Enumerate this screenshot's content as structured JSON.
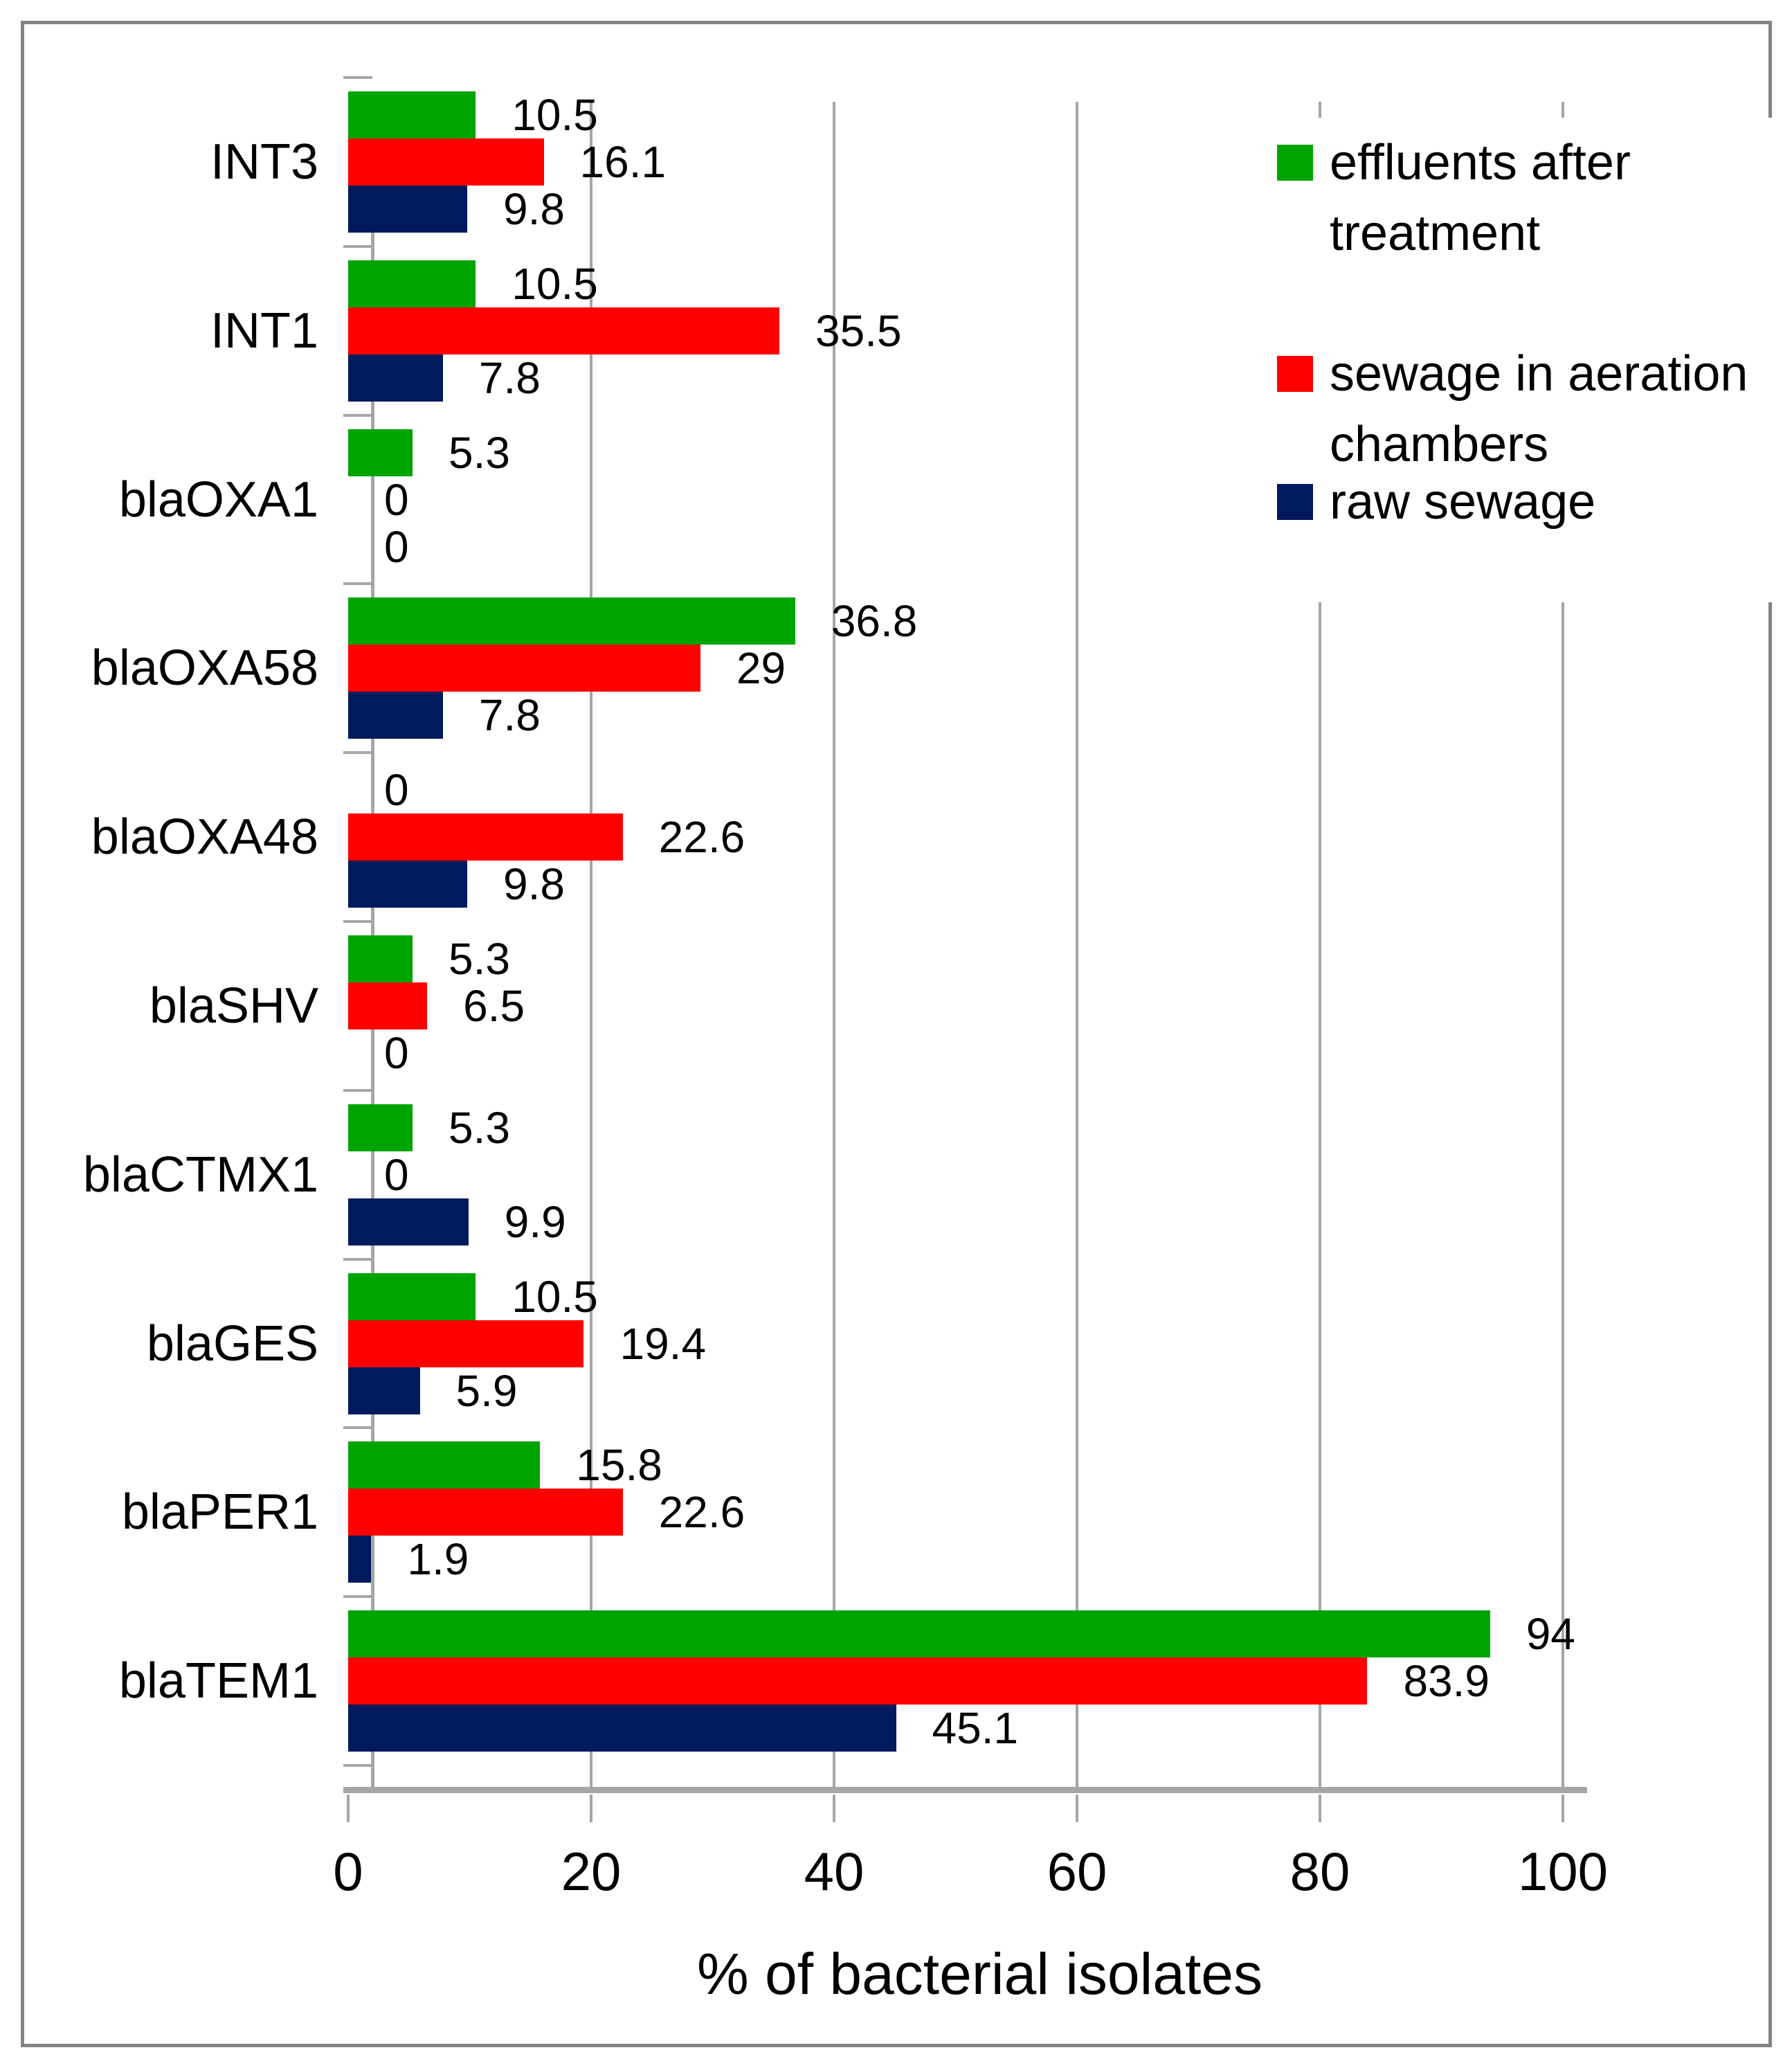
{
  "figure": {
    "border_color": "#848484",
    "background": "#ffffff",
    "gridline_color": "#a6a6a6",
    "axis_line_color": "#a6a6a6"
  },
  "chart_data": {
    "type": "bar",
    "orientation": "horizontal",
    "title": "",
    "xlabel": "% of bacterial isolates",
    "ylabel": "",
    "xlim": [
      0,
      100
    ],
    "x_ticks": [
      0,
      20,
      40,
      60,
      80,
      100
    ],
    "grid": true,
    "legend_position": "top-right",
    "categories": [
      "INT3",
      "INT1",
      "blaOXA1",
      "blaOXA58",
      "blaOXA48",
      "blaSHV",
      "blaCTMX1",
      "blaGES",
      "blaPER1",
      "blaTEM1"
    ],
    "series": [
      {
        "name": "effluents after treatment",
        "color": "#00a400",
        "values": [
          10.5,
          10.5,
          5.3,
          36.8,
          0,
          5.3,
          5.3,
          10.5,
          15.8,
          94
        ]
      },
      {
        "name": "sewage in aeration chambers",
        "color": "#ff0000",
        "values": [
          16.1,
          35.5,
          0,
          29,
          22.6,
          6.5,
          0,
          19.4,
          22.6,
          83.9
        ]
      },
      {
        "name": "raw sewage",
        "color": "#001a5c",
        "values": [
          9.8,
          7.8,
          0,
          7.8,
          9.8,
          0,
          9.9,
          5.9,
          1.9,
          45.1
        ]
      }
    ]
  },
  "legend": {
    "items": [
      {
        "label_lines": [
          "effluents after",
          "treatment"
        ],
        "color": "#00a400"
      },
      {
        "label_lines": [
          "sewage in aeration",
          "chambers"
        ],
        "color": "#ff0000"
      },
      {
        "label_lines": [
          "raw sewage"
        ],
        "color": "#001a5c"
      }
    ]
  }
}
